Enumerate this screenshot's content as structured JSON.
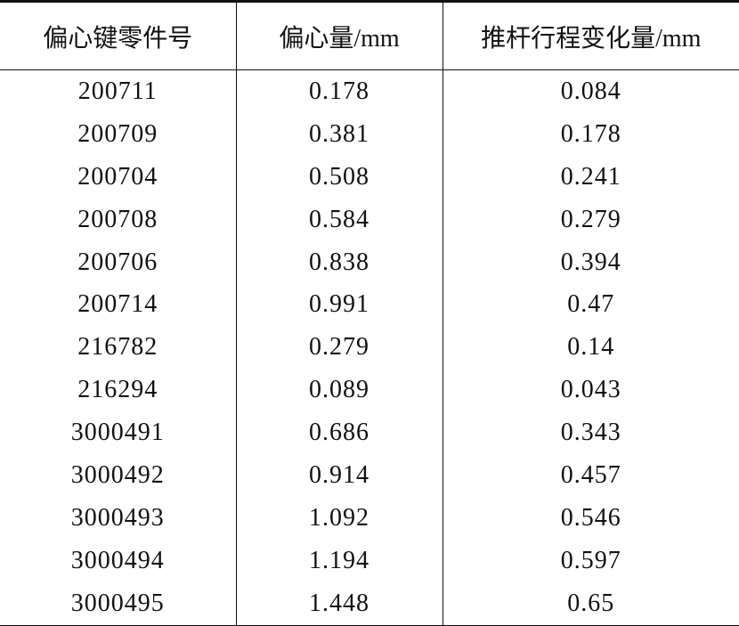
{
  "table": {
    "header": [
      "偏心键零件号",
      "偏心量/mm",
      "推杆行程变化量/mm"
    ],
    "rows": [
      [
        "200711",
        "0.178",
        "0.084"
      ],
      [
        "200709",
        "0.381",
        "0.178"
      ],
      [
        "200704",
        "0.508",
        "0.241"
      ],
      [
        "200708",
        "0.584",
        "0.279"
      ],
      [
        "200706",
        "0.838",
        "0.394"
      ],
      [
        "200714",
        "0.991",
        "0.47"
      ],
      [
        "216782",
        "0.279",
        "0.14"
      ],
      [
        "216294",
        "0.089",
        "0.043"
      ],
      [
        "3000491",
        "0.686",
        "0.343"
      ],
      [
        "3000492",
        "0.914",
        "0.457"
      ],
      [
        "3000493",
        "1.092",
        "0.546"
      ],
      [
        "3000494",
        "1.194",
        "0.597"
      ],
      [
        "3000495",
        "1.448",
        "0.65"
      ]
    ]
  }
}
